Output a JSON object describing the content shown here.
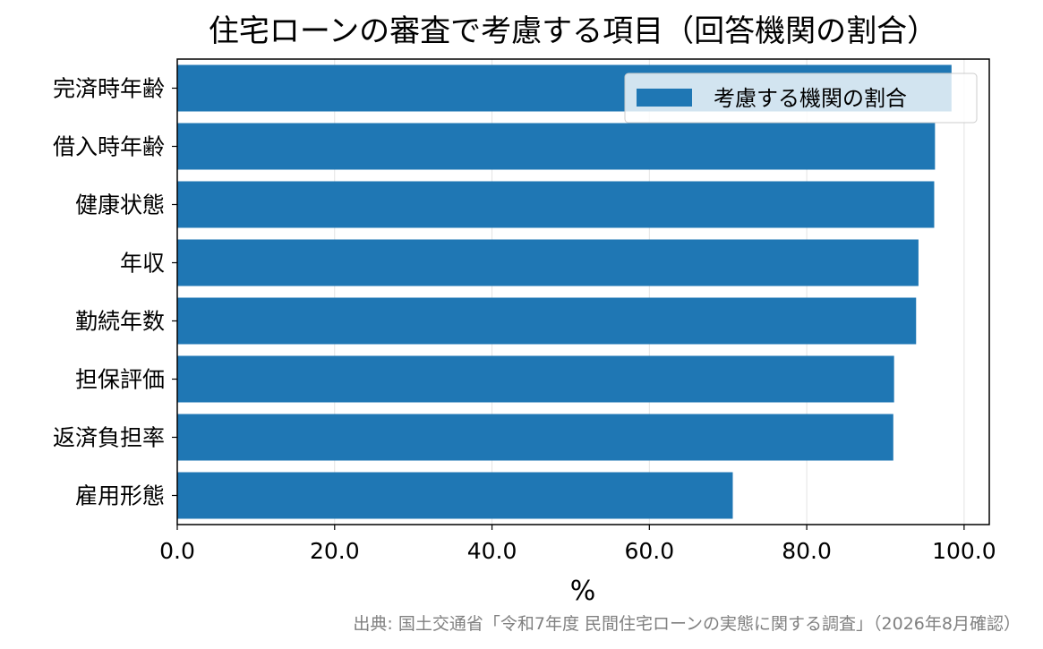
{
  "chart_data": {
    "type": "bar",
    "orientation": "horizontal",
    "title": "住宅ローンの審査で考慮する項目（回答機関の割合）",
    "xlabel": "%",
    "ylabel": "",
    "xlim": [
      0,
      103.2
    ],
    "x_ticks": [
      "0.0",
      "20.0",
      "40.0",
      "60.0",
      "80.0",
      "100.0"
    ],
    "grid": "x",
    "legend_position": "top-right",
    "categories": [
      "完済時年齢",
      "借入時年齢",
      "健康状態",
      "年収",
      "勤続年数",
      "担保評価",
      "返済負担率",
      "雇用形態"
    ],
    "series": [
      {
        "name": "考慮する機関の割合",
        "color": "#1f77b4",
        "values": [
          98.4,
          96.3,
          96.2,
          94.2,
          93.9,
          91.1,
          91.0,
          70.6
        ]
      }
    ],
    "source": "出典: 国土交通省「令和7年度 民間住宅ローンの実態に関する調査」（2026年8月確認）"
  }
}
